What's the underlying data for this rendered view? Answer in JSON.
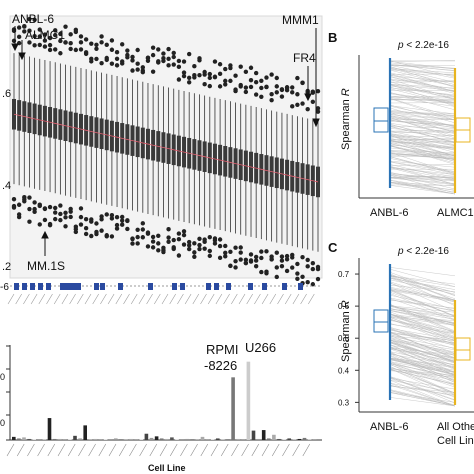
{
  "chart_data": [
    {
      "type": "box",
      "panel": "A",
      "title": "",
      "ylabel": "",
      "y_tick_labels": [
        ".6",
        ".4",
        ".2"
      ],
      "y_ticks": [
        0.6,
        0.4,
        0.2
      ],
      "ylim": [
        0.18,
        0.78
      ],
      "n_boxes": 60,
      "median_start": 0.555,
      "median_end": 0.4,
      "annotations": [
        "ANBL-6",
        "ALMC1",
        "MMM1",
        "FR4",
        "MM.1S"
      ],
      "strip_label": "-6"
    },
    {
      "type": "bar",
      "panel": "bottom-left",
      "xlabel": "Cell Line",
      "ylabel": "",
      "y_tick_labels": [
        "",
        "0",
        "",
        "0",
        ""
      ],
      "ylim": [
        0,
        18
      ],
      "values": [
        0.6,
        0.3,
        0.5,
        0.2,
        0.1,
        0.1,
        0.1,
        4.2,
        0.2,
        0.2,
        0.1,
        0.1,
        0.8,
        0.3,
        2.8,
        0.1,
        0.2,
        0.1,
        0.1,
        0.1,
        0.3,
        0.1,
        0.1,
        0.2,
        0.1,
        0.1,
        1.2,
        0.4,
        0.7,
        0.3,
        0.2,
        0.5,
        0.1,
        0.1,
        0.2,
        0.1,
        0.1,
        0.6,
        0.1,
        0.1,
        0.3,
        0.1,
        0.1,
        12.0,
        0.2,
        0.1,
        15.0,
        1.8,
        0.2,
        1.9,
        0.3,
        1.0,
        0.2,
        0.1,
        0.3,
        0.1,
        0.2,
        0.4,
        0.1,
        0.1
      ],
      "annotations": [
        "RPMI",
        "-8226",
        "U266"
      ]
    },
    {
      "type": "paired-box",
      "panel": "B",
      "ylabel": "Spearman R",
      "categories": [
        "ANBL-6",
        "ALMC1"
      ],
      "pvalue": "p < 2.2e-16",
      "medians": [
        0.56,
        0.5
      ],
      "colors": [
        "#2a73b5",
        "#e8b420"
      ]
    },
    {
      "type": "paired-box",
      "panel": "C",
      "ylabel": "Spearman R",
      "categories": [
        "ANBL-6",
        "All Other Cell Lines"
      ],
      "pvalue": "p < 2.2e-16",
      "y_tick_labels": [
        "0.7",
        "0.6",
        "0.5",
        "0.4",
        "0.3"
      ],
      "y_ticks": [
        0.7,
        0.6,
        0.5,
        0.4,
        0.3
      ],
      "ylim": [
        0.27,
        0.75
      ],
      "medians": [
        0.53,
        0.45
      ],
      "colors": [
        "#2a73b5",
        "#e8b420"
      ]
    }
  ],
  "labels": {
    "panel_b": "B",
    "panel_c": "C",
    "pvalue_prefix": "p",
    "pvalue_rest": " < 2.2e-16",
    "spearman": "Spearman ",
    "spearman_r": "R",
    "anbl6": "ANBL-6",
    "almc1": "ALMC1",
    "all_other_1": "All Othe",
    "all_other_2": "Cell Line",
    "cell_line": "Cell Line",
    "rpmi_1": "RPMI",
    "rpmi_2": "-8226",
    "u266": "U266",
    "mmm1": "MMM1",
    "fr4": "FR4",
    "mm1s": "MM.1S",
    "almc1_a": "ALMC1",
    "anbl6_a": "ANBL-6",
    "strip": "-6",
    "y6": ".6",
    "y4": ".4",
    "y2": ".2",
    "c07": "0.7",
    "c06": "0.6",
    "c05": "0.5",
    "c04": "0.4",
    "c03": "0.3"
  }
}
